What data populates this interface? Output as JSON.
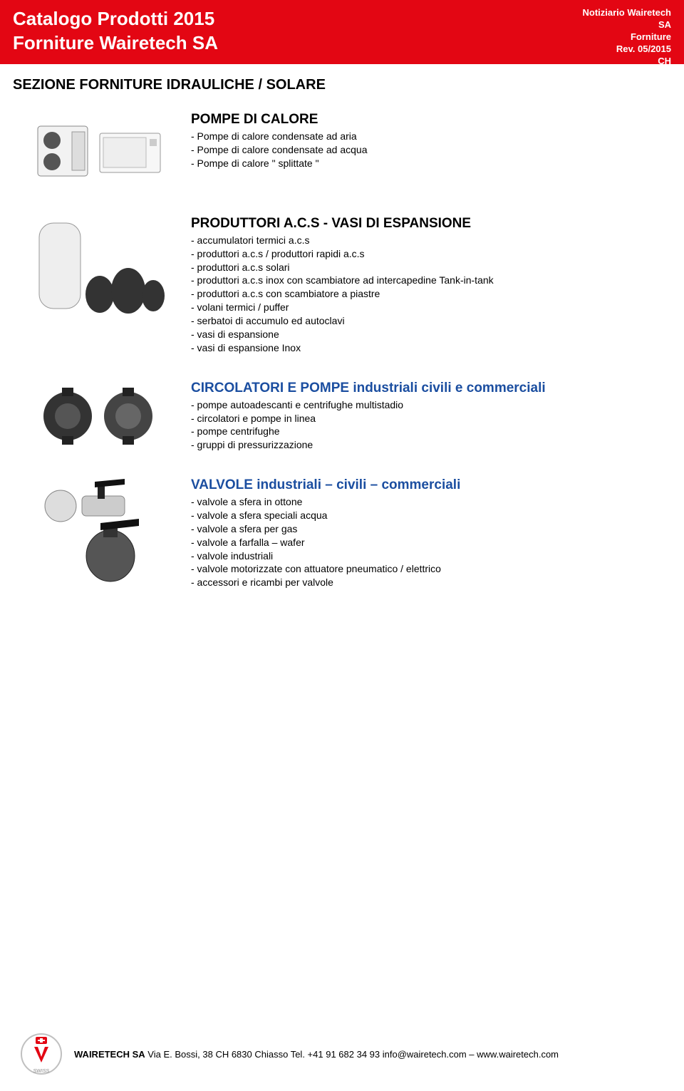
{
  "colors": {
    "header_bg": "#e30613",
    "header_text": "#ffffff",
    "accent_title": "#1b4ea0",
    "body_text": "#000000",
    "page_bg": "#ffffff"
  },
  "header": {
    "title_line1": "Catalogo Prodotti 2015",
    "title_line2": "Forniture Wairetech SA",
    "right_line1": "Notiziario Wairetech",
    "right_line2": "SA",
    "right_line3": "Forniture",
    "right_line4": "Rev. 05/2015",
    "right_line5": "CH"
  },
  "section_heading": "SEZIONE FORNITURE IDRAULICHE / SOLARE",
  "categories": [
    {
      "image_alt": "heat-pump-units",
      "title": "POMPE DI CALORE",
      "title_accent": false,
      "items": [
        "- Pompe di calore condensate ad aria",
        "- Pompe di calore condensate ad acqua",
        "- Pompe di calore \" splittate \""
      ]
    },
    {
      "image_alt": "water-tanks",
      "title": "PRODUTTORI A.C.S  -  VASI DI ESPANSIONE",
      "title_accent": false,
      "items": [
        "- accumulatori termici a.c.s",
        "- produttori a.c.s / produttori rapidi a.c.s",
        "- produttori a.c.s solari",
        "- produttori a.c.s inox con scambiatore ad intercapedine Tank-in-tank",
        "- produttori a.c.s con scambiatore a piastre",
        "- volani termici / puffer",
        "- serbatoi di accumulo ed autoclavi",
        "- vasi di espansione",
        "- vasi di espansione Inox"
      ]
    },
    {
      "image_alt": "circulator-pumps",
      "title": "CIRCOLATORI E POMPE industriali civili e commerciali",
      "title_accent": true,
      "items": [
        "- pompe autoadescanti e centrifughe multistadio",
        "- circolatori e pompe in linea",
        "- pompe centrifughe",
        "- gruppi di pressurizzazione"
      ]
    },
    {
      "image_alt": "valves",
      "title": "VALVOLE industriali – civili – commerciali",
      "title_accent": true,
      "items": [
        "- valvole a sfera in ottone",
        "- valvole a sfera speciali acqua",
        "- valvole a sfera per gas",
        "- valvole a farfalla – wafer",
        "- valvole industriali",
        "- valvole motorizzate con attuatore pneumatico / elettrico",
        "- accessori e ricambi per valvole"
      ]
    }
  ],
  "footer": {
    "company": "WAIRETECH SA",
    "address": "Via E. Bossi, 38 CH 6830 Chiasso Tel. +41 91 682 34 93 info@wairetech.com – www.wairetech.com",
    "logo_alt": "wairetech-swiss-logo"
  }
}
